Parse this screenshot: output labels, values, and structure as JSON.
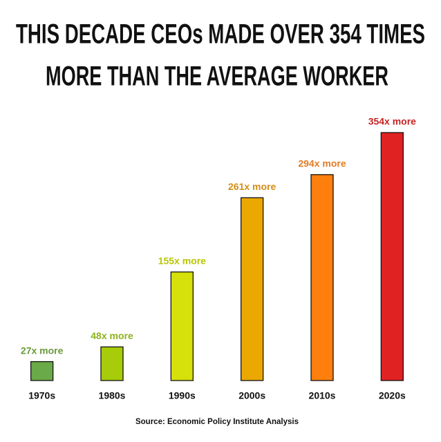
{
  "chart_data": {
    "type": "bar",
    "title": [
      "THIS DECADE CEOs MADE OVER 354 TIMES",
      "MORE THAN THE AVERAGE WORKER"
    ],
    "categories": [
      "1970s",
      "1980s",
      "1990s",
      "2000s",
      "2010s",
      "2020s"
    ],
    "values": [
      27,
      48,
      155,
      261,
      294,
      354
    ],
    "value_labels": [
      "27x more",
      "48x more",
      "155x more",
      "261x more",
      "294x more",
      "354x more"
    ],
    "colors": [
      "#6aaa48",
      "#a6cc0a",
      "#d6e00a",
      "#eba800",
      "#ff7f0e",
      "#e02222"
    ],
    "label_colors": [
      "#6a9a3a",
      "#8db31c",
      "#b8c600",
      "#d58c12",
      "#e37b22",
      "#c42424"
    ],
    "source": "Source: Economic Policy Institute Analysis"
  }
}
